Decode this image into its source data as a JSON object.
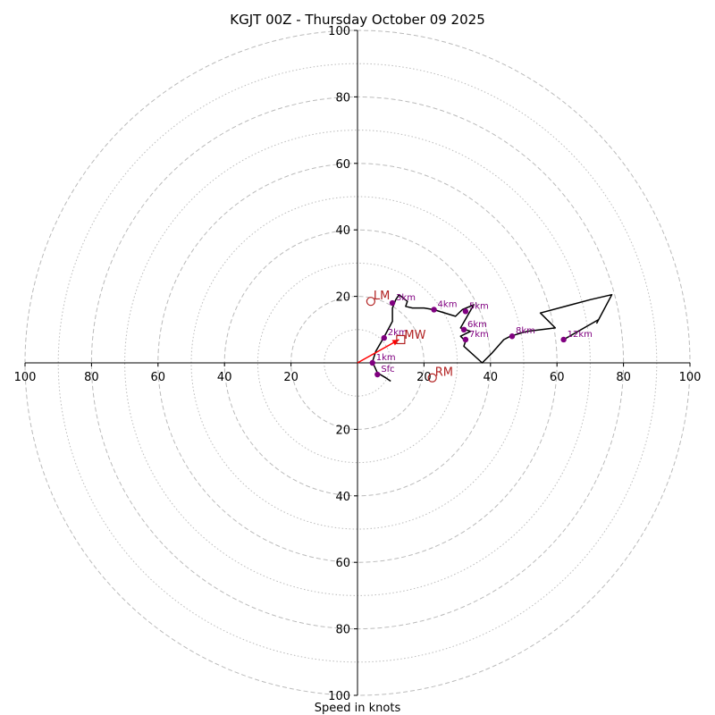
{
  "chart_data": {
    "type": "hodograph",
    "title": "KGJT 00Z - Thursday October 09 2025",
    "xlabel": "Speed in knots",
    "units": "knots",
    "range": [
      -100,
      100
    ],
    "rings_major": [
      20,
      40,
      60,
      80,
      100
    ],
    "rings_minor": [
      10,
      30,
      50,
      70,
      90
    ],
    "tick_labels": {
      "left": [
        "100",
        "80",
        "60",
        "40",
        "20"
      ],
      "right": [
        "20",
        "40",
        "60",
        "80",
        "100"
      ],
      "top": [
        "100",
        "80",
        "60",
        "40",
        "20"
      ],
      "bottom": [
        "20",
        "40",
        "60",
        "80",
        "100"
      ]
    },
    "trace": [
      [
        10,
        -5.5
      ],
      [
        8.5,
        -4.5
      ],
      [
        6,
        -3
      ],
      [
        4.5,
        0.3
      ],
      [
        5.5,
        3.5
      ],
      [
        8,
        7.8
      ],
      [
        10.5,
        12.5
      ],
      [
        10.5,
        16.5
      ],
      [
        11.5,
        19
      ],
      [
        12.5,
        20.5
      ],
      [
        15,
        18.5
      ],
      [
        14.5,
        17
      ],
      [
        16.5,
        16.5
      ],
      [
        20,
        16.5
      ],
      [
        23,
        16
      ],
      [
        29.5,
        14
      ],
      [
        31.5,
        16
      ],
      [
        35,
        17.5
      ],
      [
        31,
        10.5
      ],
      [
        34,
        9.5
      ],
      [
        31,
        8
      ],
      [
        32.5,
        6.5
      ],
      [
        32,
        5
      ],
      [
        37.5,
        0
      ],
      [
        40.5,
        3
      ],
      [
        44,
        7
      ],
      [
        46,
        8
      ],
      [
        51,
        9.5
      ],
      [
        59.5,
        10.5
      ],
      [
        55,
        15
      ],
      [
        70,
        19
      ],
      [
        76.5,
        20.5
      ],
      [
        72,
        12
      ],
      [
        72.5,
        13
      ],
      [
        62,
        7
      ]
    ],
    "height_markers": [
      {
        "label": "Sfc",
        "u": 6,
        "v": -3.5
      },
      {
        "label": "1km",
        "u": 4.5,
        "v": 0
      },
      {
        "label": "2km",
        "u": 8,
        "v": 7.5
      },
      {
        "label": "3km",
        "u": 10.5,
        "v": 18
      },
      {
        "label": "4km",
        "u": 23,
        "v": 16
      },
      {
        "label": "5km",
        "u": 32.5,
        "v": 15.5
      },
      {
        "label": "6km",
        "u": 32,
        "v": 10
      },
      {
        "label": "7km",
        "u": 32.5,
        "v": 7
      },
      {
        "label": "8km",
        "u": 46.5,
        "v": 8
      },
      {
        "label": "12km",
        "u": 62,
        "v": 7
      }
    ],
    "storm_motion": {
      "LM": {
        "label": "LM",
        "u": 4,
        "v": 18.5
      },
      "RM": {
        "label": "RM",
        "u": 22.5,
        "v": -4.5
      },
      "MW": {
        "label": "MW",
        "u": 13,
        "v": 7
      }
    },
    "motion_vector": {
      "from": [
        0,
        0
      ],
      "to": [
        12.5,
        7
      ]
    },
    "colors": {
      "trace": "#000000",
      "height_marker": "#800080",
      "storm_motion": "#b22222",
      "motion_vector": "#ff0000",
      "rings": "#bbbbbb",
      "axes": "#000000"
    }
  }
}
